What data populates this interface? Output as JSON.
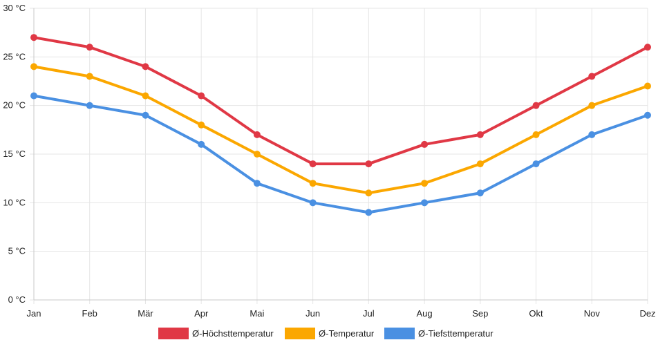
{
  "chart_data": {
    "type": "line",
    "title": "",
    "xlabel": "",
    "ylabel": "",
    "ylim": [
      0,
      30
    ],
    "y_ticks": [
      0,
      5,
      10,
      15,
      20,
      25,
      30
    ],
    "y_unit": "°C",
    "grid": true,
    "legend_position": "bottom-center",
    "categories": [
      "Jan",
      "Feb",
      "Mär",
      "Apr",
      "Mai",
      "Jun",
      "Jul",
      "Aug",
      "Sep",
      "Okt",
      "Nov",
      "Dez"
    ],
    "series": [
      {
        "name": "Ø-Höchsttemperatur",
        "color": "#e03845",
        "values": [
          27,
          26,
          24,
          21,
          17,
          14,
          14,
          16,
          17,
          20,
          23,
          26
        ]
      },
      {
        "name": "Ø-Temperatur",
        "color": "#fba700",
        "values": [
          24,
          23,
          21,
          18,
          15,
          12,
          11,
          12,
          14,
          17,
          20,
          22
        ]
      },
      {
        "name": "Ø-Tiefsttemperatur",
        "color": "#4a90e2",
        "values": [
          21,
          20,
          19,
          16,
          12,
          10,
          9,
          10,
          11,
          14,
          17,
          19
        ]
      }
    ]
  }
}
